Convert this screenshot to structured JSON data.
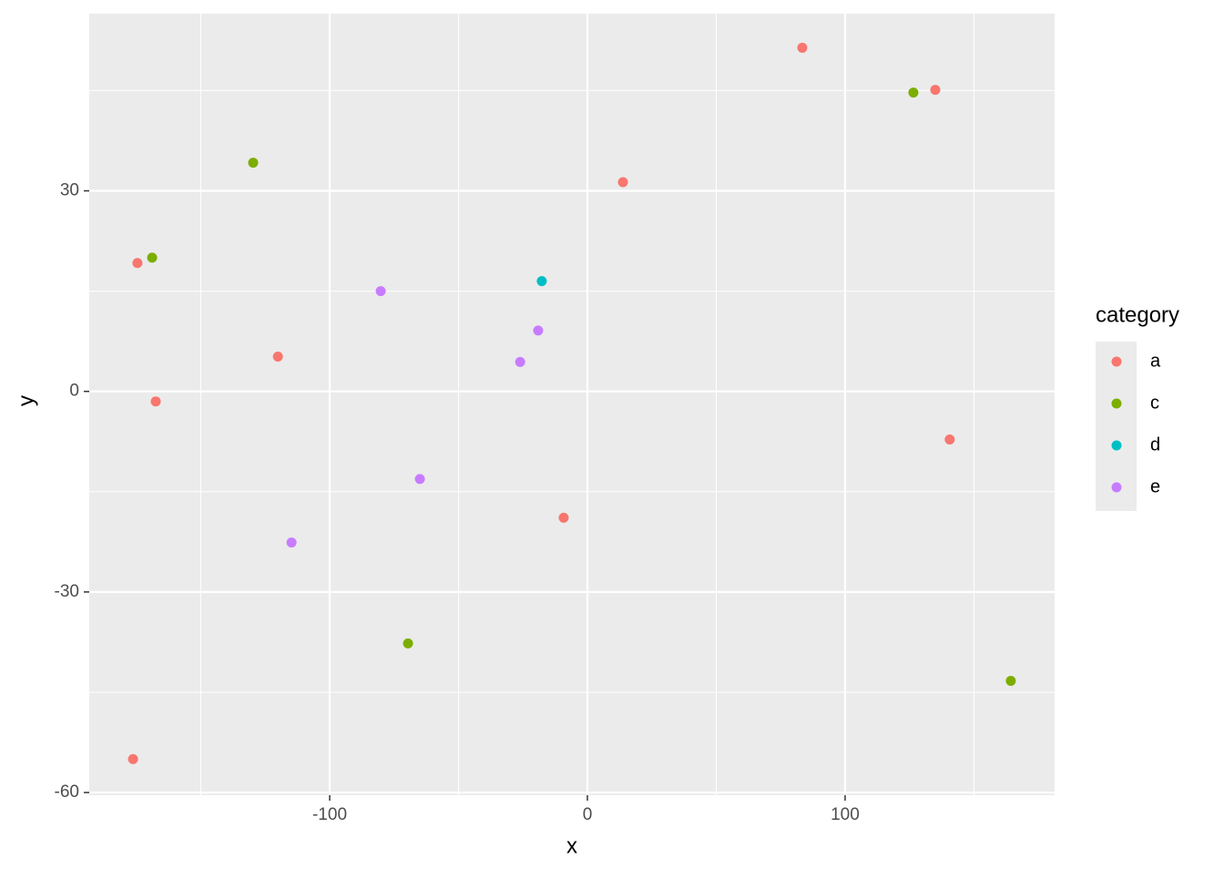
{
  "chart_data": {
    "type": "scatter",
    "x_label": "x",
    "y_label": "y",
    "xlim": [
      -193.3,
      181.3
    ],
    "ylim": [
      -60.4,
      56.5
    ],
    "xticks": [
      -100,
      0,
      100
    ],
    "yticks": [
      -60,
      -30,
      0,
      30
    ],
    "x_minor_grid": [
      -150,
      -50,
      50,
      150
    ],
    "y_minor_grid": [
      -45,
      -15,
      15,
      45
    ],
    "grid": true,
    "legend_title": "category",
    "legend_position": "right",
    "series": [
      {
        "name": "a",
        "color": "#F8766D",
        "x": [
          83.4,
          135.0,
          13.8,
          -174.6,
          -120.1,
          -167.5,
          140.6,
          -9.2,
          -176.3
        ],
        "values": [
          51.4,
          45.1,
          31.3,
          19.2,
          5.2,
          -1.5,
          -7.2,
          -18.9,
          -55.0
        ]
      },
      {
        "name": "c",
        "color": "#7CAE00",
        "x": [
          126.5,
          -129.7,
          -168.9,
          -69.6,
          164.3
        ],
        "values": [
          44.7,
          34.2,
          20.0,
          -37.7,
          -43.3
        ]
      },
      {
        "name": "d",
        "color": "#00BFC4",
        "x": [
          -17.7
        ],
        "values": [
          16.5
        ]
      },
      {
        "name": "e",
        "color": "#C77CFF",
        "x": [
          -80.2,
          -19.1,
          -26.1,
          -65.0,
          -114.8
        ],
        "values": [
          15.0,
          9.1,
          4.4,
          -13.1,
          -22.6
        ]
      }
    ]
  }
}
